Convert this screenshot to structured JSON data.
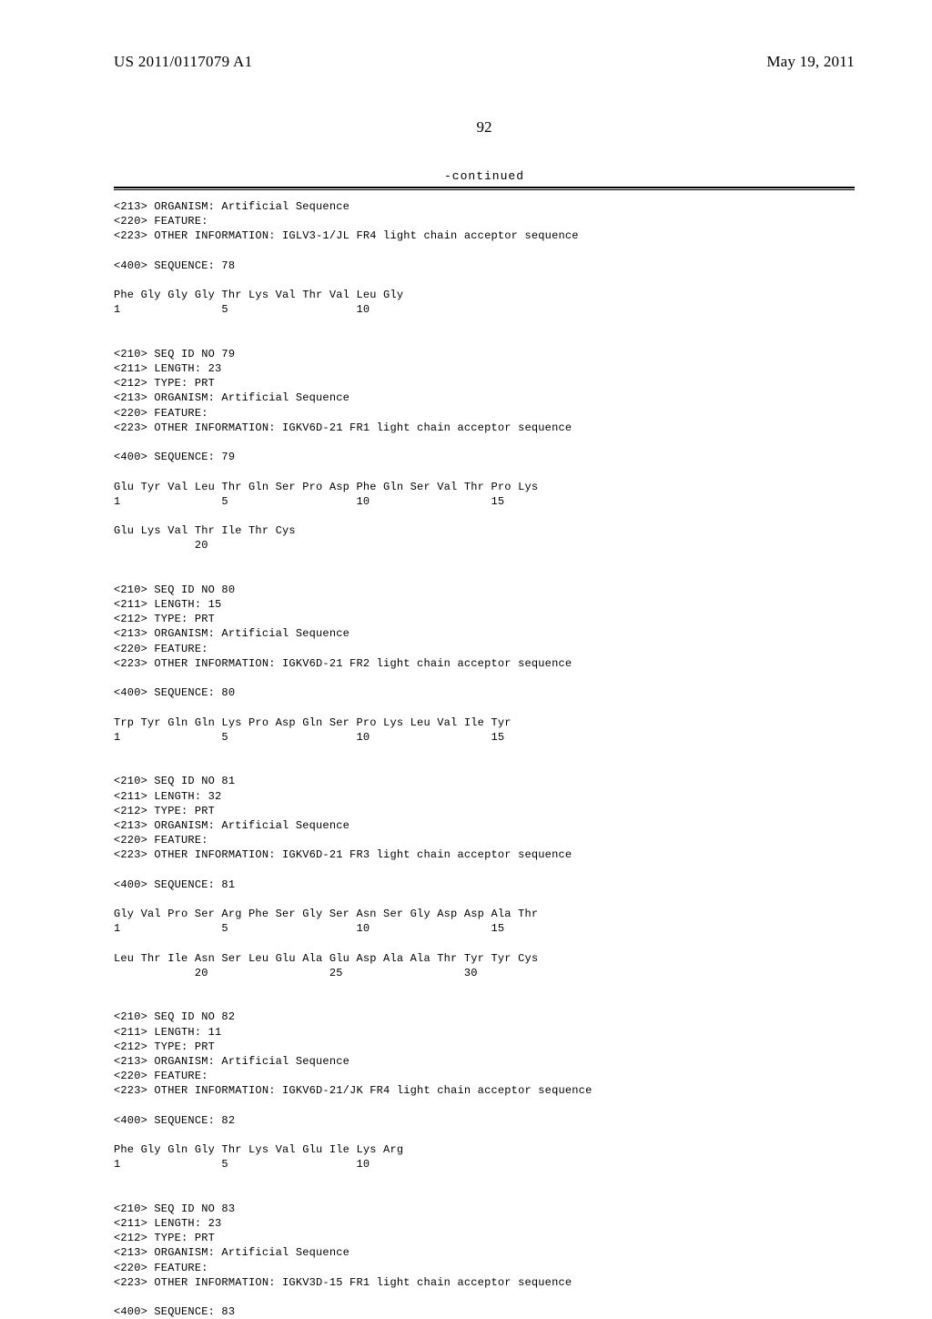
{
  "header": {
    "publication_number": "US 2011/0117079 A1",
    "publication_date": "May 19, 2011",
    "page_number": "92",
    "continued_label": "-continued"
  },
  "entries": [
    {
      "meta": [
        "<213> ORGANISM: Artificial Sequence",
        "<220> FEATURE:",
        "<223> OTHER INFORMATION: IGLV3-1/JL FR4 light chain acceptor sequence"
      ],
      "seq_label": "<400> SEQUENCE: 78",
      "residues": [
        "Phe Gly Gly Gly Thr Lys Val Thr Val Leu Gly",
        "1               5                   10"
      ]
    },
    {
      "meta": [
        "<210> SEQ ID NO 79",
        "<211> LENGTH: 23",
        "<212> TYPE: PRT",
        "<213> ORGANISM: Artificial Sequence",
        "<220> FEATURE:",
        "<223> OTHER INFORMATION: IGKV6D-21 FR1 light chain acceptor sequence"
      ],
      "seq_label": "<400> SEQUENCE: 79",
      "residues": [
        "Glu Tyr Val Leu Thr Gln Ser Pro Asp Phe Gln Ser Val Thr Pro Lys",
        "1               5                   10                  15",
        "",
        "Glu Lys Val Thr Ile Thr Cys",
        "            20"
      ]
    },
    {
      "meta": [
        "<210> SEQ ID NO 80",
        "<211> LENGTH: 15",
        "<212> TYPE: PRT",
        "<213> ORGANISM: Artificial Sequence",
        "<220> FEATURE:",
        "<223> OTHER INFORMATION: IGKV6D-21 FR2 light chain acceptor sequence"
      ],
      "seq_label": "<400> SEQUENCE: 80",
      "residues": [
        "Trp Tyr Gln Gln Lys Pro Asp Gln Ser Pro Lys Leu Val Ile Tyr",
        "1               5                   10                  15"
      ]
    },
    {
      "meta": [
        "<210> SEQ ID NO 81",
        "<211> LENGTH: 32",
        "<212> TYPE: PRT",
        "<213> ORGANISM: Artificial Sequence",
        "<220> FEATURE:",
        "<223> OTHER INFORMATION: IGKV6D-21 FR3 light chain acceptor sequence"
      ],
      "seq_label": "<400> SEQUENCE: 81",
      "residues": [
        "Gly Val Pro Ser Arg Phe Ser Gly Ser Asn Ser Gly Asp Asp Ala Thr",
        "1               5                   10                  15",
        "",
        "Leu Thr Ile Asn Ser Leu Glu Ala Glu Asp Ala Ala Thr Tyr Tyr Cys",
        "            20                  25                  30"
      ]
    },
    {
      "meta": [
        "<210> SEQ ID NO 82",
        "<211> LENGTH: 11",
        "<212> TYPE: PRT",
        "<213> ORGANISM: Artificial Sequence",
        "<220> FEATURE:",
        "<223> OTHER INFORMATION: IGKV6D-21/JK FR4 light chain acceptor sequence"
      ],
      "seq_label": "<400> SEQUENCE: 82",
      "residues": [
        "Phe Gly Gln Gly Thr Lys Val Glu Ile Lys Arg",
        "1               5                   10"
      ]
    },
    {
      "meta": [
        "<210> SEQ ID NO 83",
        "<211> LENGTH: 23",
        "<212> TYPE: PRT",
        "<213> ORGANISM: Artificial Sequence",
        "<220> FEATURE:",
        "<223> OTHER INFORMATION: IGKV3D-15 FR1 light chain acceptor sequence"
      ],
      "seq_label": "<400> SEQUENCE: 83",
      "residues": []
    }
  ]
}
